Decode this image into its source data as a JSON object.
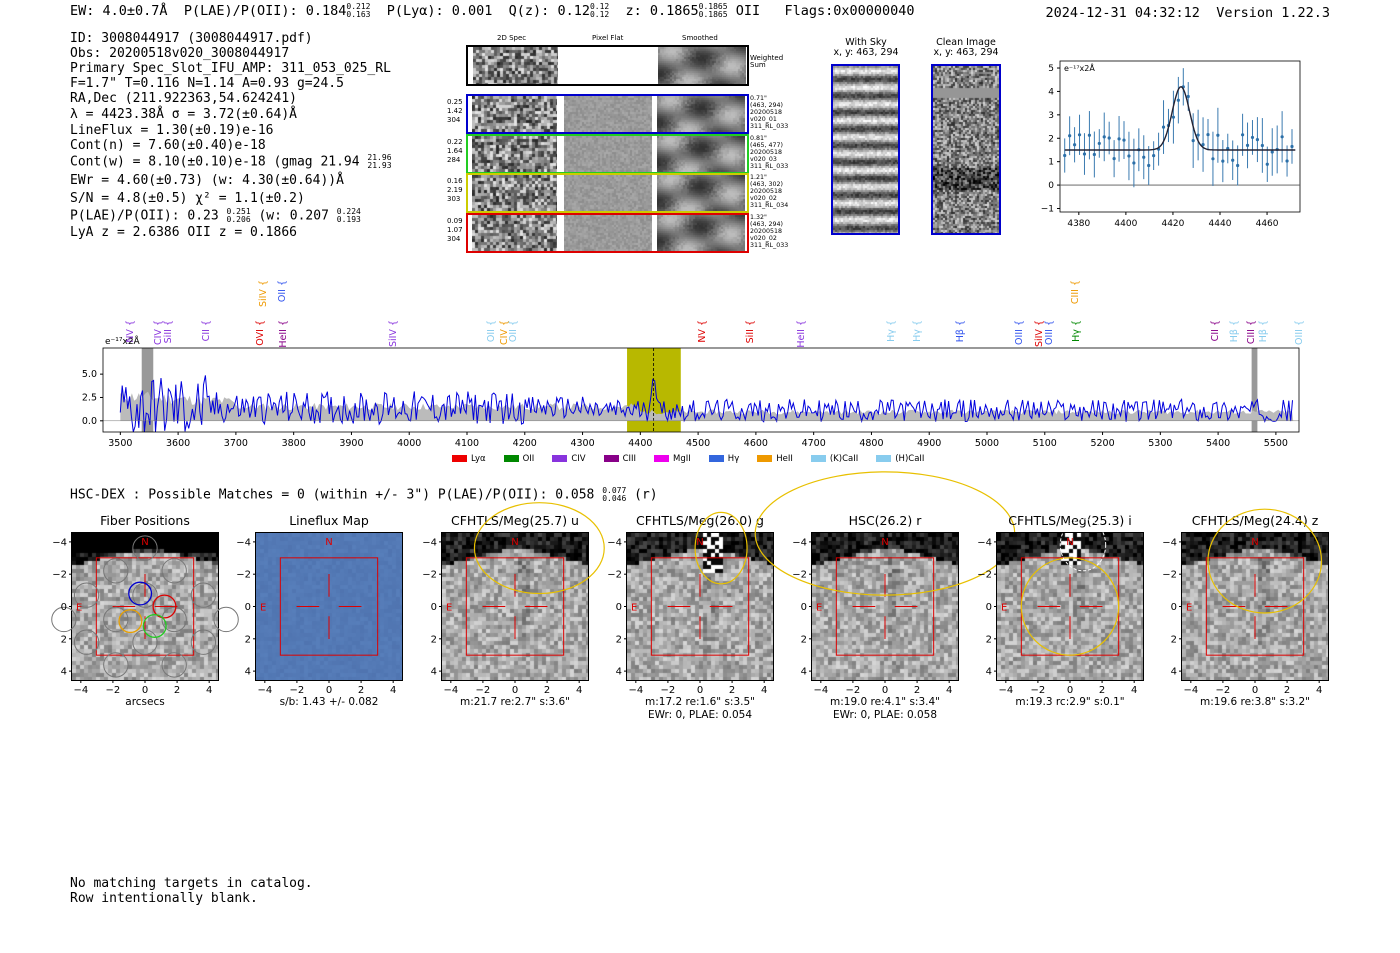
{
  "header": {
    "ew_label": "EW: 4.0±0.7Å",
    "plae_label": "P(LAE)/P(OII): 0.184",
    "plae_hi": "0.212",
    "plae_lo": "0.163",
    "plya_label": "P(Lyα): 0.001",
    "qz_label": "Q(z): 0.12",
    "qz_hi": "0.12",
    "qz_lo": "0.12",
    "z_label": "z: 0.1865",
    "z_hi": "0.1865",
    "z_lo": "0.1865",
    "z_line": "OII",
    "flags": "Flags:0x00000040",
    "timestamp": "2024-12-31 04:32:12",
    "version": "Version 1.22.3"
  },
  "info": {
    "id": "ID: 3008044917 (3008044917.pdf)",
    "obs": "Obs: 20200518v020_3008044917",
    "primary": "Primary Spec_Slot_IFU_AMP: 311_053_025_RL",
    "params": "F=1.7\"  T=0.116  N=1.14  A=0.93  g=24.5",
    "radec": "RA,Dec (211.922363,54.624241)",
    "lambda": "λ = 4423.38Å  σ = 3.72(±0.64)Å",
    "lineflux": "LineFlux = 1.30(±0.19)e-16",
    "contn": "Cont(n) = 7.60(±0.40)e-18",
    "contw": "Cont(w) = 8.10(±0.10)e-18 (gmag 21.94",
    "gmag_hi": "21.96",
    "gmag_lo": "21.93",
    "ewr": "EWr = 4.60(±0.73) (w: 4.30(±0.64))Å",
    "sn": "S/N = 4.8(±0.5)  χ² = 1.1(±0.2)",
    "plae2": "P(LAE)/P(OII): 0.23",
    "plae2_hi": "0.251",
    "plae2_lo": "0.206",
    "plae2_w": "(w: 0.207",
    "plae2_w_hi": "0.224",
    "plae2_w_lo": "0.193",
    "lyaz": "LyA z = 2.6386  OII z = 0.1866"
  },
  "cutouts": {
    "col_2d": "2D Spec",
    "col_flat": "Pixel Flat",
    "col_smooth": "Smoothed",
    "weighted_sum": "Weighted Sum",
    "rows": [
      {
        "a": "0.25",
        "b": "1.42",
        "c": "304",
        "d": "0.71\"",
        "e": "(463, 294)",
        "f": "20200518",
        "g": "v020_01",
        "h": "311_RL_033",
        "color": "#0000cc"
      },
      {
        "a": "0.22",
        "b": "1.64",
        "c": "284",
        "d": "0.81\"",
        "e": "(465, 477)",
        "f": "20200518",
        "g": "v020_03",
        "h": "311_RL_033",
        "color": "#22cc22"
      },
      {
        "a": "0.16",
        "b": "2.19",
        "c": "303",
        "d": "1.21\"",
        "e": "(463, 302)",
        "f": "20200518",
        "g": "v020_02",
        "h": "311_RL_034",
        "color": "#cccc00"
      },
      {
        "a": "0.09",
        "b": "1.07",
        "c": "304",
        "d": "1.32\"",
        "e": "(463, 294)",
        "f": "20200518",
        "g": "v020_02",
        "h": "311_RL_033",
        "color": "#dd0000"
      }
    ],
    "with_sky": "With Sky",
    "with_sky_xy": "x, y: 463, 294",
    "clean": "Clean Image",
    "clean_xy": "x, y: 463, 294"
  },
  "zoom_plot": {
    "ylabel": "e⁻¹⁷x2Å",
    "xticks": [
      "4380",
      "4400",
      "4420",
      "4440",
      "4460"
    ],
    "yticks": [
      "5",
      "4",
      "3",
      "2",
      "1",
      "0",
      "−1"
    ]
  },
  "spectrum": {
    "ylabel": "e⁻¹⁷x2Å",
    "yticks": [
      "5.0",
      "2.5",
      "0.0"
    ],
    "xticks": [
      "3500",
      "3600",
      "3700",
      "3800",
      "3900",
      "4000",
      "4100",
      "4200",
      "4300",
      "4400",
      "4500",
      "4600",
      "4700",
      "4800",
      "4900",
      "5000",
      "5100",
      "5200",
      "5300",
      "5400",
      "5500"
    ],
    "lines_top": [
      {
        "t": "SiIV",
        "c": "#ee9900",
        "x": 263
      },
      {
        "t": "OII",
        "c": "#3355ee",
        "x": 282
      },
      {
        "t": "CIII",
        "c": "#ee9900",
        "x": 1075
      }
    ],
    "lines_mid": [
      {
        "t": "NV",
        "c": "#8833dd",
        "x": 130
      },
      {
        "t": "CIV",
        "c": "#8833dd",
        "x": 158
      },
      {
        "t": "SiII",
        "c": "#8833dd",
        "x": 168
      },
      {
        "t": "CII",
        "c": "#8833dd",
        "x": 206
      },
      {
        "t": "OVI",
        "c": "#dd0000",
        "x": 260
      },
      {
        "t": "HeII",
        "c": "#880088",
        "x": 283
      },
      {
        "t": "SiIV",
        "c": "#8833dd",
        "x": 393
      },
      {
        "t": "OII",
        "c": "#88ccee",
        "x": 491
      },
      {
        "t": "CIV",
        "c": "#ee9900",
        "x": 504
      },
      {
        "t": "OII",
        "c": "#88ccee",
        "x": 513
      },
      {
        "t": "NV",
        "c": "#dd0000",
        "x": 702
      },
      {
        "t": "SiII",
        "c": "#dd0000",
        "x": 750
      },
      {
        "t": "HeII",
        "c": "#8833dd",
        "x": 801
      },
      {
        "t": "Hγ",
        "c": "#88ccee",
        "x": 891
      },
      {
        "t": "Hγ",
        "c": "#88ccee",
        "x": 917
      },
      {
        "t": "Hβ",
        "c": "#3355ee",
        "x": 960
      },
      {
        "t": "OIII",
        "c": "#3355ee",
        "x": 1019
      },
      {
        "t": "SiIV",
        "c": "#dd0000",
        "x": 1039
      },
      {
        "t": "OIII",
        "c": "#3355ee",
        "x": 1049
      },
      {
        "t": "Hγ",
        "c": "#008800",
        "x": 1076
      },
      {
        "t": "CII",
        "c": "#880088",
        "x": 1215
      },
      {
        "t": "Hβ",
        "c": "#88ccee",
        "x": 1234
      },
      {
        "t": "CIII",
        "c": "#880088",
        "x": 1251
      },
      {
        "t": "Hβ",
        "c": "#88ccee",
        "x": 1263
      },
      {
        "t": "OIII",
        "c": "#88ccee",
        "x": 1299
      }
    ],
    "legend": [
      {
        "t": "Lyα",
        "c": "#ee0000"
      },
      {
        "t": "OII",
        "c": "#008800"
      },
      {
        "t": "CIV",
        "c": "#8833dd"
      },
      {
        "t": "CIII",
        "c": "#880088"
      },
      {
        "t": "MgII",
        "c": "#ee00ee"
      },
      {
        "t": "Hγ",
        "c": "#3366dd"
      },
      {
        "t": "HeII",
        "c": "#ee9900"
      },
      {
        "t": "(K)CaII",
        "c": "#88ccee"
      },
      {
        "t": "(H)CaII",
        "c": "#88ccee"
      }
    ]
  },
  "hsc": {
    "summary": "HSC-DEX : Possible Matches = 0 (within +/- 3\")  P(LAE)/P(OII): 0.058",
    "summary_hi": "0.077",
    "summary_lo": "0.046",
    "summary_band": "(r)",
    "panels": [
      {
        "title": "Fiber Positions",
        "cap1": "arcsecs",
        "cap2": ""
      },
      {
        "title": "Lineflux Map",
        "cap1": "s/b: 1.43 +/- 0.082",
        "cap2": ""
      },
      {
        "title": "CFHTLS/Meg(25.7) u",
        "cap1": "m:21.7  re:2.7\"  s:3.6\"",
        "cap2": ""
      },
      {
        "title": "CFHTLS/Meg(26.0) g",
        "cap1": "m:17.2  re:1.6\"  s:3.5\"",
        "cap2": "EWr: 0, PLAE: 0.054"
      },
      {
        "title": "HSC(26.2) r",
        "cap1": "m:19.0  re:4.1\"  s:3.4\"",
        "cap2": "EWr: 0, PLAE: 0.058"
      },
      {
        "title": "CFHTLS/Meg(25.3) i",
        "cap1": "m:19.3  rc:2.9\"  s:0.1\"",
        "cap2": ""
      },
      {
        "title": "CFHTLS/Meg(24.4) z",
        "cap1": "m:19.6  re:3.8\"  s:3.2\"",
        "cap2": ""
      }
    ],
    "xticks": [
      "−4",
      "−2",
      "0",
      "2",
      "4"
    ],
    "yticks": [
      "4",
      "2",
      "0",
      "−2",
      "−4"
    ],
    "north": "N",
    "east": "E"
  },
  "footer": {
    "line1": "No matching targets in catalog.",
    "line2": "Row intentionally blank."
  }
}
